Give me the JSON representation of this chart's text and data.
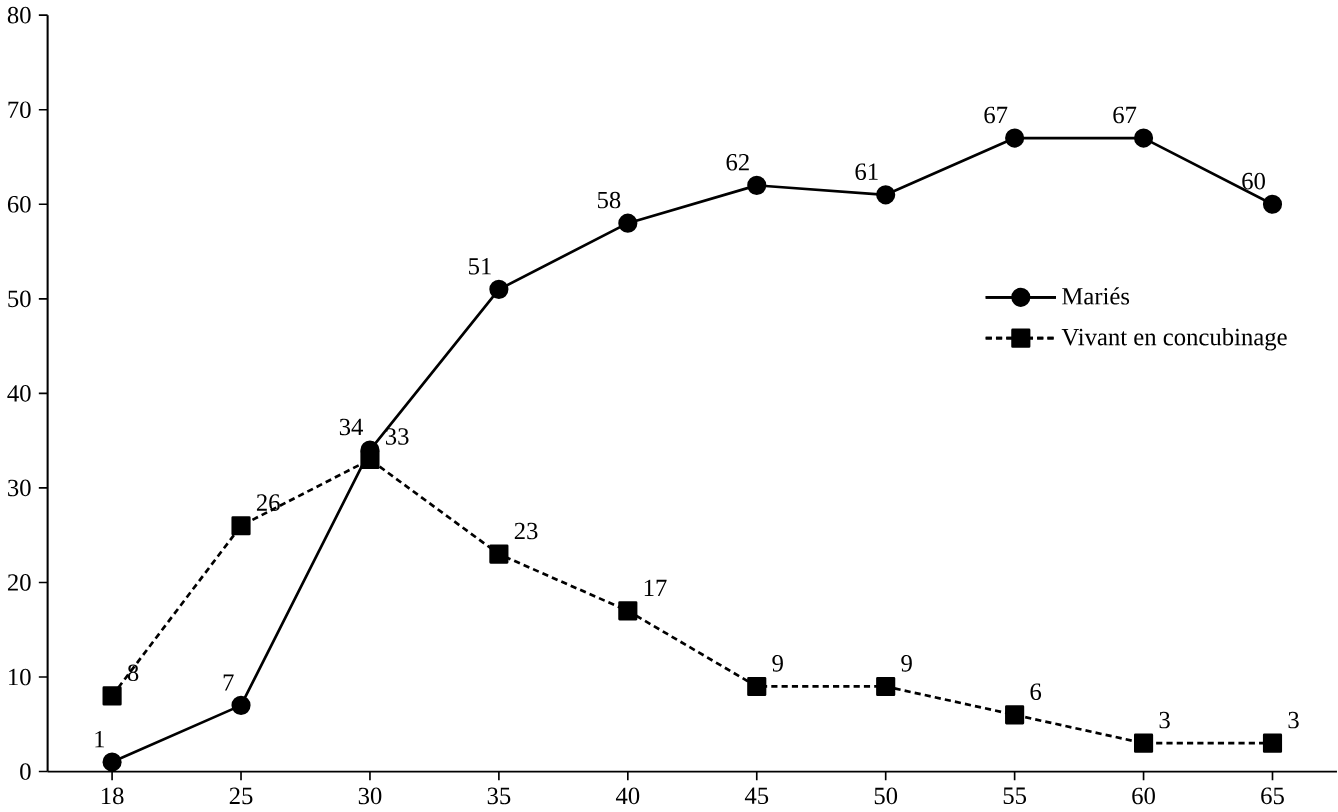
{
  "chart_data": {
    "type": "line",
    "categories": [
      "18",
      "25",
      "30",
      "35",
      "40",
      "45",
      "50",
      "55",
      "60",
      "65"
    ],
    "series": [
      {
        "name": "Mariés",
        "color": "#000000",
        "marker": "circle",
        "line_style": "solid",
        "values": [
          1,
          7,
          34,
          51,
          58,
          62,
          61,
          67,
          67,
          60
        ]
      },
      {
        "name": "Vivant en concubinage",
        "color": "#000000",
        "marker": "square",
        "line_style": "dotted",
        "values": [
          8,
          26,
          33,
          23,
          17,
          9,
          9,
          6,
          3,
          3
        ]
      }
    ],
    "ylim": [
      0,
      80
    ],
    "yticks": [
      0,
      10,
      20,
      30,
      40,
      50,
      60,
      70,
      80
    ],
    "data_labels": true,
    "legend": "right",
    "grid": false
  }
}
